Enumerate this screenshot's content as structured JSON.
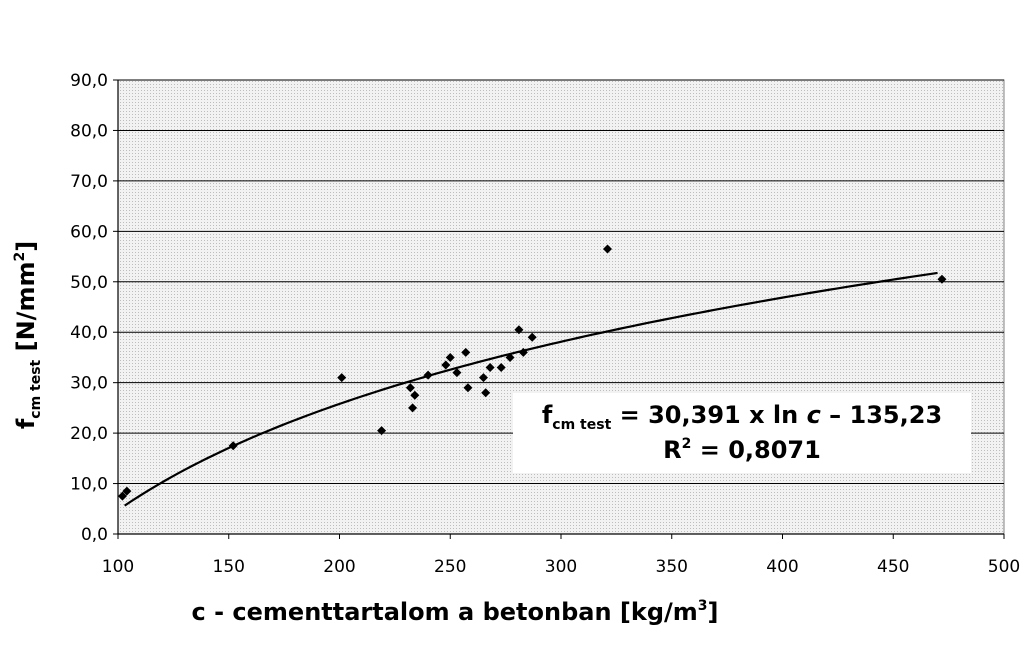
{
  "chart_data": {
    "type": "scatter",
    "title": "",
    "xlabel": {
      "main": "c - cementtartalom a betonban [kg/m",
      "sup": "3",
      "end": "]"
    },
    "ylabel": {
      "f": "f",
      "sub": "cm test",
      "unit_pre": " [N/mm",
      "sup": "2",
      "unit_post": "]"
    },
    "xlim": [
      100,
      500
    ],
    "ylim": [
      0,
      90
    ],
    "x_ticks": [
      "100",
      "150",
      "200",
      "250",
      "300",
      "350",
      "400",
      "450",
      "500"
    ],
    "y_ticks": [
      "0,0",
      "10,0",
      "20,0",
      "30,0",
      "40,0",
      "50,0",
      "60,0",
      "70,0",
      "80,0",
      "90,0"
    ],
    "grid": true,
    "legend": "none",
    "series": [
      {
        "marker": "diamond",
        "color": "#000000",
        "points": [
          [
            102,
            7.5
          ],
          [
            104,
            8.5
          ],
          [
            152,
            17.5
          ],
          [
            201,
            31.0
          ],
          [
            219,
            20.5
          ],
          [
            232,
            29.0
          ],
          [
            233,
            25.0
          ],
          [
            234,
            27.5
          ],
          [
            240,
            31.5
          ],
          [
            248,
            33.5
          ],
          [
            250,
            35.0
          ],
          [
            253,
            32.0
          ],
          [
            257,
            36.0
          ],
          [
            258,
            29.0
          ],
          [
            265,
            31.0
          ],
          [
            266,
            28.0
          ],
          [
            268,
            33.0
          ],
          [
            273,
            33.0
          ],
          [
            277,
            35.0
          ],
          [
            281,
            40.5
          ],
          [
            283,
            36.0
          ],
          [
            287,
            39.0
          ],
          [
            321,
            56.5
          ],
          [
            472,
            50.5
          ]
        ]
      }
    ],
    "trendline": {
      "type": "logarithmic",
      "a": 30.391,
      "b": -135.23,
      "x_range": [
        103,
        470
      ],
      "color": "#000000"
    },
    "annotation": {
      "f": "f",
      "sub": "cm test",
      "equation_rest": " = 30,391 x ln ",
      "var": "c",
      "constant": " – 135,23",
      "r_label": "R",
      "r_sup": "2",
      "r_value": " = 0,8071"
    }
  }
}
